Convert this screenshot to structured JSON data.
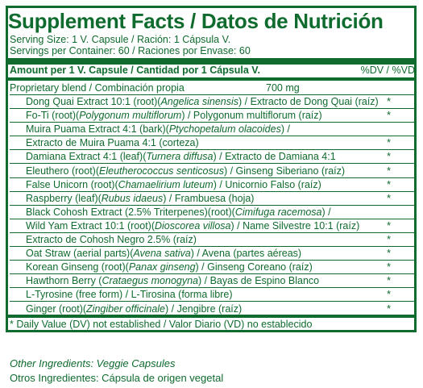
{
  "title": "Supplement Facts / Datos de Nutrición",
  "serving_size": "Serving Size: 1 V. Capsule / Ración: 1 Cápsula V.",
  "servings_per_container": "Servings per Container: 60 / Raciones por Envase: 60",
  "amount_header": "Amount per 1 V. Capsule / Cantidad por 1 Cápsula V.",
  "dv_header": "%DV / %VD",
  "blend": {
    "name": "Proprietary blend / Combinación propia",
    "amount": "700 mg"
  },
  "ingredients": [
    {
      "pre": "Dong Quai Extract 10:1 (root)(",
      "latin": "Angelica sinensis",
      "post": ") / Extracto de Dong Quai (raíz)",
      "star": "*"
    },
    {
      "pre": "Fo-Ti (root)(",
      "latin": "Polygonum multiflorum",
      "post": ") / Polygonum multiflorum (raíz)",
      "star": "*"
    },
    {
      "pre": "Muira Puama Extract 4:1 (bark)(",
      "latin": "Ptychopetalum olacoides",
      "post": ") /",
      "star": ""
    },
    {
      "pre": "Extracto de Muira Puama 4:1 (corteza)",
      "latin": "",
      "post": "",
      "star": "*"
    },
    {
      "pre": "Damiana Extract 4:1 (leaf)(",
      "latin": "Turnera diffusa",
      "post": ") / Extracto de Damiana 4:1",
      "star": "*"
    },
    {
      "pre": "Eleuthero (root)(",
      "latin": "Eleutherococcus senticosus",
      "post": ") / Ginseng Siberiano (raíz)",
      "star": "*"
    },
    {
      "pre": "False Unicorn (root)(",
      "latin": "Chamaelirium luteum",
      "post": ") / Unicornio Falso (raíz)",
      "star": "*"
    },
    {
      "pre": "Raspberry (leaf)(",
      "latin": "Rubus idaeus",
      "post": ") / Frambuesa (hoja)",
      "star": "*"
    },
    {
      "pre": "Black Cohosh Extract (2.5% Triterpenes)(root)(",
      "latin": "Cimifuga racemosa",
      "post": ") /",
      "star": ""
    },
    {
      "pre": "Wild Yam Extract 10:1 (root)(",
      "latin": "Dioscorea villosa",
      "post": ") / Name Silvestre 10:1 (raíz)",
      "star": "*"
    },
    {
      "pre": "Extracto de Cohosh Negro 2.5% (raíz)",
      "latin": "",
      "post": "",
      "star": "*"
    },
    {
      "pre": "Oat Straw (aerial parts)(",
      "latin": "Avena sativa",
      "post": ") / Avena (partes aéreas)",
      "star": "*"
    },
    {
      "pre": "Korean Ginseng (root)(",
      "latin": "Panax ginseng",
      "post": ") / Ginseng Coreano (raíz)",
      "star": "*"
    },
    {
      "pre": "Hawthorn Berry (",
      "latin": "Crataegus monogyna",
      "post": ") / Bayas de Espino Blanco",
      "star": "*"
    },
    {
      "pre": "L-Tyrosine (free form) / L-Tirosina (forma libre)",
      "latin": "",
      "post": "",
      "star": "*"
    },
    {
      "pre": "Ginger (root)(",
      "latin": "Zingiber officinale",
      "post": ") / Jengibre (raíz)",
      "star": "*"
    }
  ],
  "footnote": "* Daily Value (DV) not established / Valor Diario (VD) no establecido",
  "other_ingredients_en": "Other Ingredients: Veggie Capsules",
  "other_ingredients_es": "Otros Ingredientes: Cápsula de origen vegetal",
  "colors": {
    "primary": "#0f6b2e",
    "background": "#ffffff"
  }
}
